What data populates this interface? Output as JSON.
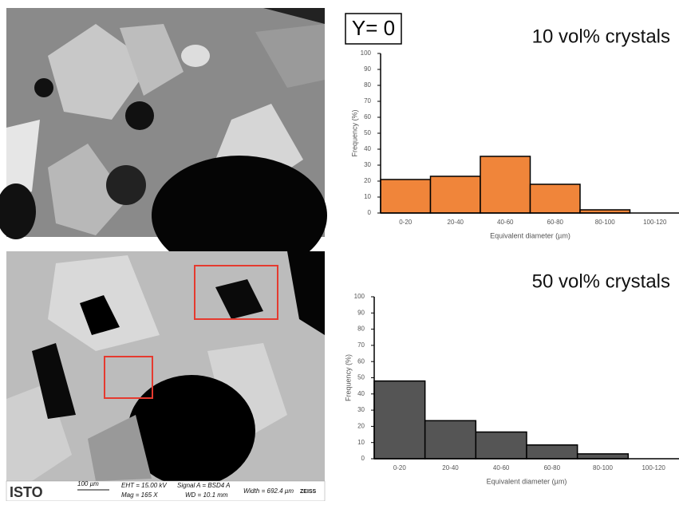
{
  "label": "Υ= 0",
  "sem_footer": {
    "logo": "ISTO",
    "scale": "100 µm",
    "eht": "EHT = 15.00 kV",
    "mag": "Mag =    165 X",
    "signal": "Signal A = BSD4 A",
    "wd": "WD = 10.1 mm",
    "width": "Width = 692.4 µm",
    "brand": "ZEISS"
  },
  "chart_data": [
    {
      "type": "bar",
      "title": "10 vol% crystals",
      "x_label": "Equivalent diameter (µm)",
      "y_label": "Frequency (%)",
      "categories": [
        "0-20",
        "20-40",
        "40-60",
        "60-80",
        "80-100",
        "100-120"
      ],
      "values": [
        21,
        23,
        35.5,
        18,
        2,
        0
      ],
      "color": "#f0853a",
      "ylim": [
        0,
        100
      ],
      "yticks": [
        0,
        10,
        20,
        30,
        40,
        50,
        60,
        70,
        80,
        90,
        100
      ]
    },
    {
      "type": "bar",
      "title": "50 vol% crystals",
      "x_label": "Equivalent diameter (µm)",
      "y_label": "Frequency (%)",
      "categories": [
        "0-20",
        "20-40",
        "40-60",
        "60-80",
        "80-100",
        "100-120"
      ],
      "values": [
        48,
        23.5,
        16.5,
        8.5,
        3,
        0
      ],
      "color": "#555555",
      "ylim": [
        0,
        100
      ],
      "yticks": [
        0,
        10,
        20,
        30,
        40,
        50,
        60,
        70,
        80,
        90,
        100
      ]
    }
  ]
}
